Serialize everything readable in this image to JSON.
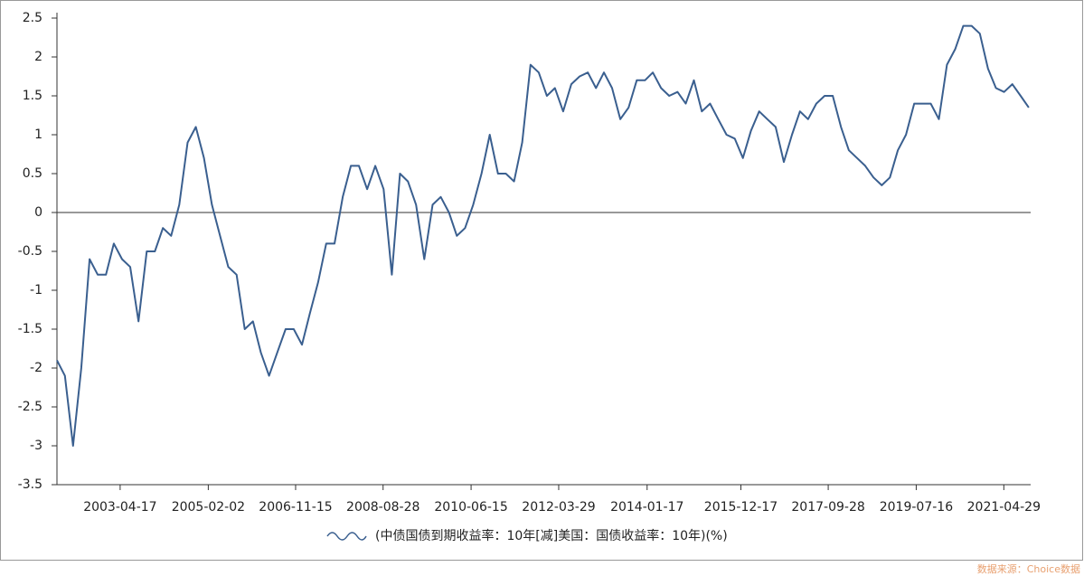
{
  "chart_data": {
    "type": "line",
    "series": [
      {
        "name": "(中债国债到期收益率：10年[减]美国：国债收益率：10年)(%)",
        "color": "#3a5f8f",
        "values": [
          -1.9,
          -2.1,
          -3.0,
          -2.0,
          -0.6,
          -0.8,
          -0.8,
          -0.4,
          -0.6,
          -0.7,
          -1.4,
          -0.5,
          -0.5,
          -0.2,
          -0.3,
          0.1,
          0.9,
          1.1,
          0.7,
          0.1,
          -0.3,
          -0.7,
          -0.8,
          -1.5,
          -1.4,
          -1.8,
          -2.1,
          -1.8,
          -1.5,
          -1.5,
          -1.7,
          -1.3,
          -0.9,
          -0.4,
          -0.4,
          0.2,
          0.6,
          0.6,
          0.3,
          0.6,
          0.3,
          -0.8,
          0.5,
          0.4,
          0.1,
          -0.6,
          0.1,
          0.2,
          0.0,
          -0.3,
          -0.2,
          0.1,
          0.5,
          1.0,
          0.5,
          0.5,
          0.4,
          0.9,
          1.9,
          1.8,
          1.5,
          1.6,
          1.3,
          1.65,
          1.75,
          1.8,
          1.6,
          1.8,
          1.6,
          1.2,
          1.35,
          1.7,
          1.7,
          1.8,
          1.6,
          1.5,
          1.55,
          1.4,
          1.7,
          1.3,
          1.4,
          1.2,
          1.0,
          0.95,
          0.7,
          1.05,
          1.3,
          1.2,
          1.1,
          0.65,
          1.0,
          1.3,
          1.2,
          1.4,
          1.5,
          1.5,
          1.1,
          0.8,
          0.7,
          0.6,
          0.45,
          0.35,
          0.45,
          0.8,
          1.0,
          1.4,
          1.4,
          1.4,
          1.2,
          1.9,
          2.1,
          2.4,
          2.4,
          2.3,
          1.85,
          1.6,
          1.55,
          1.65,
          1.5,
          1.35
        ]
      }
    ],
    "x": [
      "2002-01-01",
      "2002-03-01",
      "2002-05-01",
      "2002-07-01",
      "2002-09-01",
      "2002-11-01",
      "2003-01-01",
      "2003-03-01",
      "2003-05-01",
      "2003-07-01",
      "2003-09-01",
      "2003-11-01",
      "2004-01-01",
      "2004-03-01",
      "2004-05-01",
      "2004-07-01",
      "2004-09-01",
      "2004-11-01",
      "2005-01-01",
      "2005-03-01",
      "2005-05-01",
      "2005-07-01",
      "2005-09-01",
      "2005-11-01",
      "2006-01-01",
      "2006-03-01",
      "2006-05-01",
      "2006-07-01",
      "2006-09-01",
      "2006-11-01",
      "2007-01-01",
      "2007-03-01",
      "2007-05-01",
      "2007-07-01",
      "2007-09-01",
      "2007-11-01",
      "2008-01-01",
      "2008-03-01",
      "2008-05-01",
      "2008-07-01",
      "2008-09-01",
      "2008-11-01",
      "2009-01-01",
      "2009-03-01",
      "2009-05-01",
      "2009-07-01",
      "2009-09-01",
      "2009-11-01",
      "2010-01-01",
      "2010-03-01",
      "2010-05-01",
      "2010-07-01",
      "2010-09-01",
      "2010-11-01",
      "2011-01-01",
      "2011-03-01",
      "2011-05-01",
      "2011-07-01",
      "2011-09-01",
      "2011-11-01",
      "2012-01-01",
      "2012-03-01",
      "2012-05-01",
      "2012-07-01",
      "2012-09-01",
      "2012-11-01",
      "2013-01-01",
      "2013-03-01",
      "2013-05-01",
      "2013-07-01",
      "2013-09-01",
      "2013-11-01",
      "2014-01-01",
      "2014-03-01",
      "2014-05-01",
      "2014-07-01",
      "2014-09-01",
      "2014-11-01",
      "2015-01-01",
      "2015-03-01",
      "2015-05-01",
      "2015-07-01",
      "2015-09-01",
      "2015-11-01",
      "2016-01-01",
      "2016-03-01",
      "2016-05-01",
      "2016-07-01",
      "2016-09-01",
      "2016-11-01",
      "2017-01-01",
      "2017-03-01",
      "2017-05-01",
      "2017-07-01",
      "2017-09-01",
      "2017-11-01",
      "2018-01-01",
      "2018-03-01",
      "2018-05-01",
      "2018-07-01",
      "2018-09-01",
      "2018-11-01",
      "2019-01-01",
      "2019-03-01",
      "2019-05-01",
      "2019-07-01",
      "2019-09-01",
      "2019-11-01",
      "2020-01-01",
      "2020-03-01",
      "2020-05-01",
      "2020-07-01",
      "2020-09-01",
      "2020-11-01",
      "2021-01-01",
      "2021-03-01",
      "2021-05-01",
      "2021-07-01",
      "2021-09-01",
      "2021-11-01"
    ],
    "xlim": [
      "2002-01-01",
      "2021-11-15"
    ],
    "xticks": [
      "2003-04-17",
      "2005-02-02",
      "2006-11-15",
      "2008-08-28",
      "2010-06-15",
      "2012-03-29",
      "2014-01-17",
      "2015-12-17",
      "2017-09-28",
      "2019-07-16",
      "2021-04-29"
    ],
    "ylim": [
      -3.5,
      2.5
    ],
    "yticks": [
      -3.5,
      -3,
      -2.5,
      -2,
      -1.5,
      -1,
      -0.5,
      0,
      0.5,
      1,
      1.5,
      2,
      2.5
    ],
    "source": "数据来源：Choice数据"
  }
}
